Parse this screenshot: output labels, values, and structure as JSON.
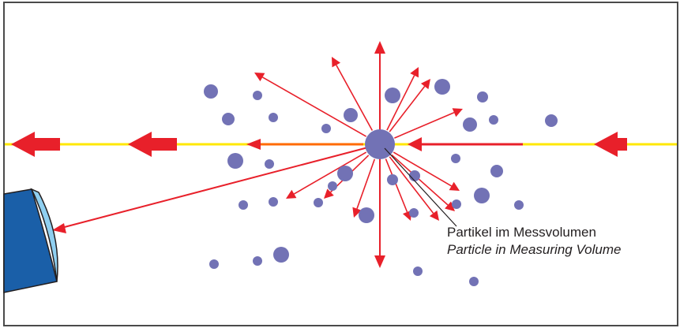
{
  "diagram": {
    "label_de": "Partikel im Messvolumen",
    "label_en": "Particle in Measuring Volume"
  },
  "colors": {
    "frame": "#4a4a4a",
    "beam": "#ffe800",
    "beam_highlight": "#ff6b00",
    "arrow": "#e8202a",
    "particle": "#7272b5",
    "detector_body": "#1a5fa8",
    "detector_lens": "#8fcff0",
    "leader_line": "#231f20"
  },
  "icons": {
    "laser_direction": "arrow-left-icon",
    "scatter": "arrow-icon",
    "detector": "detector-icon"
  }
}
